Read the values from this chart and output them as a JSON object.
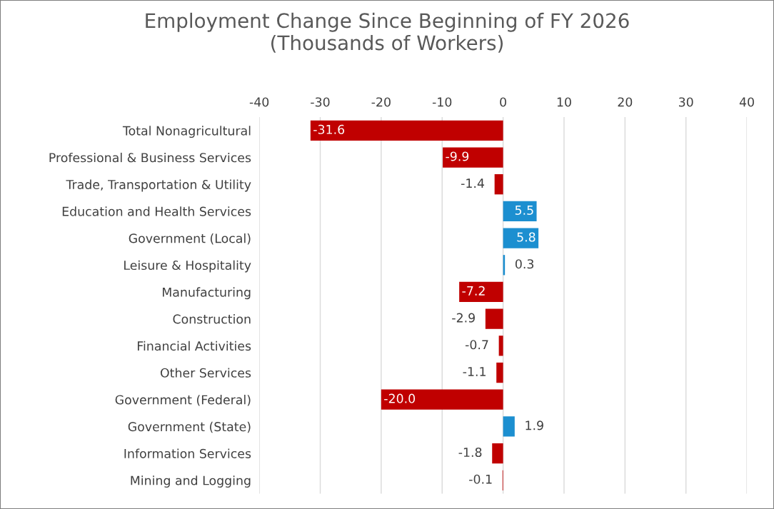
{
  "chart_data": {
    "type": "bar",
    "orientation": "horizontal",
    "title": "Employment Change Since Beginning of FY 2026\n(Thousands of Workers)",
    "categories": [
      "Total Nonagricultural",
      "Professional & Business Services",
      "Trade, Transportation & Utility",
      "Education and Health Services",
      "Government (Local)",
      "Leisure & Hospitality",
      "Manufacturing",
      "Construction",
      "Financial Activities",
      "Other Services",
      "Government (Federal)",
      "Government (State)",
      "Information Services",
      "Mining and Logging"
    ],
    "values": [
      -31.6,
      -9.9,
      -1.4,
      5.5,
      5.8,
      0.3,
      -7.2,
      -2.9,
      -0.7,
      -1.1,
      -20.0,
      1.9,
      -1.8,
      -0.1
    ],
    "colors": [
      "#c00000",
      "#c00000",
      "#c00000",
      "#1c8fd0",
      "#1c8fd0",
      "#1c8fd0",
      "#c00000",
      "#c00000",
      "#c00000",
      "#c00000",
      "#c00000",
      "#1c8fd0",
      "#c00000",
      "#c00000"
    ],
    "xlim": [
      -40,
      40
    ],
    "xticks": [
      -40,
      -30,
      -20,
      -10,
      0,
      10,
      20,
      30,
      40
    ],
    "value_labels": [
      "-31.6",
      "-9.9",
      "-1.4",
      "5.5",
      "5.8",
      "0.3",
      "-7.2",
      "-2.9",
      "-0.7",
      "-1.1",
      "-20.0",
      "1.9",
      "-1.8",
      "-0.1"
    ],
    "grid": "x"
  }
}
